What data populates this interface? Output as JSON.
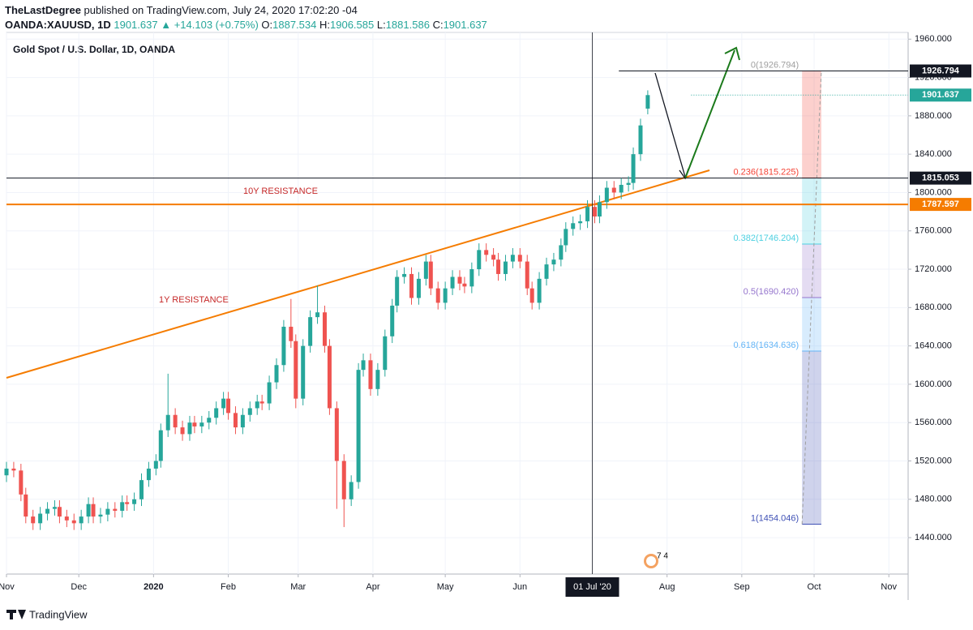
{
  "header": {
    "publisher": "TheLastDegree",
    "published": "published on TradingView.com, July 24, 2020 17:02:20 -04",
    "symbol": "OANDA:XAUUSD, 1D",
    "last": "1901.637",
    "change": "▲ +14.103 (+0.75%)",
    "ohlc": [
      {
        "label": "O:",
        "value": "1887.534"
      },
      {
        "label": "H:",
        "value": "1906.585"
      },
      {
        "label": "L:",
        "value": "1881.586"
      },
      {
        "label": "C:",
        "value": "1901.637"
      }
    ]
  },
  "footer": "TradingView",
  "chart_data": {
    "type": "candlestick",
    "title": "Gold Spot / U.S. Dollar, 1D, OANDA",
    "up_color": "#26a69a",
    "down_color": "#ef5350",
    "x": [
      0,
      3,
      6,
      8,
      11,
      14,
      17,
      20,
      22,
      25,
      28,
      31,
      34,
      36,
      39,
      42,
      45,
      48,
      50,
      53,
      56,
      59,
      62,
      64,
      67,
      70,
      73,
      76,
      78,
      81,
      84,
      87,
      90,
      92,
      95,
      98,
      101,
      104,
      106,
      109,
      112,
      115,
      118,
      120,
      123,
      126,
      129,
      132,
      134,
      137,
      140,
      143,
      146,
      148,
      151,
      154,
      157,
      160,
      162,
      165,
      168,
      171,
      174,
      176,
      179,
      182,
      185,
      188,
      190,
      193,
      196,
      199,
      202,
      204,
      207,
      210,
      213,
      216,
      218,
      221,
      224,
      227,
      230,
      232,
      235,
      238,
      241,
      244,
      246,
      249,
      252,
      255,
      258,
      260,
      263,
      266
    ],
    "open": [
      1505,
      1512,
      1510,
      1485,
      1462,
      1455,
      1465,
      1470,
      1472,
      1462,
      1458,
      1455,
      1462,
      1475,
      1462,
      1464,
      1470,
      1468,
      1477,
      1475,
      1480,
      1500,
      1512,
      1520,
      1552,
      1568,
      1555,
      1548,
      1560,
      1556,
      1560,
      1565,
      1575,
      1585,
      1570,
      1555,
      1568,
      1575,
      1582,
      1580,
      1602,
      1620,
      1660,
      1645,
      1585,
      1640,
      1670,
      1675,
      1640,
      1575,
      1520,
      1480,
      1498,
      1615,
      1625,
      1595,
      1615,
      1650,
      1682,
      1712,
      1715,
      1690,
      1710,
      1728,
      1700,
      1685,
      1700,
      1712,
      1705,
      1702,
      1720,
      1740,
      1735,
      1730,
      1715,
      1728,
      1735,
      1728,
      1700,
      1685,
      1710,
      1725,
      1730,
      1745,
      1762,
      1768,
      1770,
      1785,
      1775,
      1790,
      1805,
      1800,
      1808,
      1810,
      1840,
      1887.534
    ],
    "high": [
      1519,
      1519,
      1517,
      1492,
      1469,
      1472,
      1477,
      1479,
      1479,
      1469,
      1465,
      1469,
      1482,
      1482,
      1471,
      1477,
      1477,
      1484,
      1484,
      1487,
      1507,
      1519,
      1527,
      1559,
      1611,
      1575,
      1562,
      1567,
      1567,
      1567,
      1572,
      1582,
      1592,
      1592,
      1577,
      1575,
      1582,
      1589,
      1589,
      1609,
      1627,
      1667,
      1689,
      1652,
      1647,
      1677,
      1703,
      1682,
      1647,
      1582,
      1527,
      1505,
      1622,
      1632,
      1632,
      1622,
      1657,
      1689,
      1719,
      1722,
      1722,
      1717,
      1735,
      1735,
      1707,
      1707,
      1719,
      1719,
      1712,
      1727,
      1747,
      1747,
      1742,
      1737,
      1735,
      1742,
      1742,
      1735,
      1707,
      1717,
      1732,
      1737,
      1752,
      1769,
      1775,
      1777,
      1792,
      1792,
      1797,
      1812,
      1812,
      1815,
      1817,
      1847,
      1877,
      1906.585
    ],
    "low": [
      1498,
      1503,
      1478,
      1455,
      1448,
      1448,
      1458,
      1463,
      1455,
      1451,
      1448,
      1448,
      1455,
      1455,
      1455,
      1457,
      1461,
      1461,
      1468,
      1468,
      1473,
      1493,
      1505,
      1513,
      1545,
      1548,
      1541,
      1541,
      1549,
      1549,
      1553,
      1558,
      1568,
      1563,
      1548,
      1548,
      1561,
      1568,
      1573,
      1573,
      1595,
      1613,
      1638,
      1575,
      1578,
      1633,
      1663,
      1633,
      1568,
      1470,
      1451,
      1473,
      1491,
      1608,
      1588,
      1588,
      1608,
      1643,
      1675,
      1705,
      1683,
      1683,
      1703,
      1693,
      1678,
      1678,
      1693,
      1698,
      1695,
      1695,
      1713,
      1728,
      1723,
      1708,
      1708,
      1721,
      1721,
      1693,
      1678,
      1678,
      1703,
      1718,
      1723,
      1738,
      1755,
      1761,
      1763,
      1768,
      1768,
      1783,
      1793,
      1793,
      1801,
      1803,
      1833,
      1881.586
    ],
    "close": [
      1512,
      1510,
      1485,
      1462,
      1455,
      1465,
      1470,
      1472,
      1462,
      1458,
      1455,
      1462,
      1475,
      1462,
      1464,
      1470,
      1468,
      1477,
      1475,
      1480,
      1500,
      1512,
      1520,
      1552,
      1568,
      1555,
      1548,
      1560,
      1556,
      1560,
      1565,
      1575,
      1585,
      1570,
      1555,
      1568,
      1575,
      1582,
      1580,
      1602,
      1620,
      1660,
      1645,
      1585,
      1640,
      1670,
      1675,
      1640,
      1575,
      1520,
      1480,
      1498,
      1615,
      1625,
      1595,
      1615,
      1650,
      1682,
      1712,
      1715,
      1690,
      1710,
      1728,
      1700,
      1685,
      1700,
      1712,
      1705,
      1702,
      1720,
      1740,
      1735,
      1730,
      1715,
      1728,
      1735,
      1728,
      1700,
      1685,
      1710,
      1725,
      1730,
      1745,
      1762,
      1768,
      1770,
      1785,
      1775,
      1790,
      1805,
      1800,
      1808,
      1810,
      1840,
      1870,
      1901.637
    ],
    "xlim": [
      0,
      374
    ],
    "ylim": [
      1402,
      1967
    ],
    "xticks": [
      {
        "value": 0,
        "label": "Nov"
      },
      {
        "value": 30,
        "label": "Dec"
      },
      {
        "value": 61,
        "label": "2020"
      },
      {
        "value": 92,
        "label": "Feb"
      },
      {
        "value": 121,
        "label": "Mar"
      },
      {
        "value": 152,
        "label": "Apr"
      },
      {
        "value": 182,
        "label": "May"
      },
      {
        "value": 213,
        "label": "Jun"
      },
      {
        "value": 274,
        "label": "Aug"
      },
      {
        "value": 305,
        "label": "Sep"
      },
      {
        "value": 335,
        "label": "Oct"
      },
      {
        "value": 366,
        "label": "Nov"
      }
    ],
    "yticks": [
      {
        "value": 1440,
        "label": "1440.000"
      },
      {
        "value": 1480,
        "label": "1480.000"
      },
      {
        "value": 1520,
        "label": "1520.000"
      },
      {
        "value": 1560,
        "label": "1560.000"
      },
      {
        "value": 1600,
        "label": "1600.000"
      },
      {
        "value": 1640,
        "label": "1640.000"
      },
      {
        "value": 1680,
        "label": "1680.000"
      },
      {
        "value": 1720,
        "label": "1720.000"
      },
      {
        "value": 1760,
        "label": "1760.000"
      },
      {
        "value": 1800,
        "label": "1800.000"
      },
      {
        "value": 1840,
        "label": "1840.000"
      },
      {
        "value": 1880,
        "label": "1880.000"
      },
      {
        "value": 1920,
        "label": "1920.000"
      },
      {
        "value": 1960,
        "label": "1960.000"
      }
    ],
    "grid": true,
    "crosshair": {
      "x": 243,
      "label": "01 Jul '20"
    },
    "price_badges": [
      {
        "value": 1926.794,
        "color": "#131722"
      },
      {
        "value": 1901.637,
        "color": "#26a69a"
      },
      {
        "value": 1815.053,
        "color": "#131722"
      },
      {
        "value": 1787.597,
        "color": "#f57c00"
      }
    ],
    "fib": [
      {
        "value": 1926.794,
        "label": "0(1926.794)",
        "color": "#9e9e9e"
      },
      {
        "value": 1815.225,
        "label": "0.236(1815.225)",
        "color": "#f44336"
      },
      {
        "value": 1746.204,
        "label": "0.382(1746.204)",
        "color": "#4dd0e1"
      },
      {
        "value": 1690.42,
        "label": "0.5(1690.420)",
        "color": "#9575cd"
      },
      {
        "value": 1634.636,
        "label": "0.618(1634.636)",
        "color": "#64b5f6"
      },
      {
        "value": 1454.046,
        "label": "1(1454.046)",
        "color": "#3f51b5"
      }
    ],
    "annotations": [
      "10Y RESISTANCE",
      "1Y RESISTANCE"
    ]
  }
}
